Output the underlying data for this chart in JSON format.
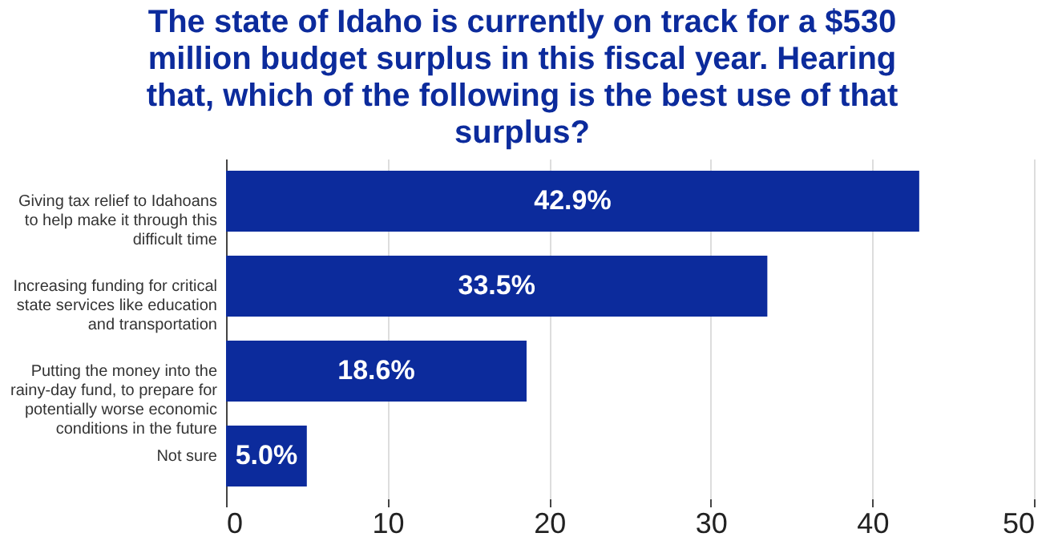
{
  "chart_data": {
    "type": "bar",
    "orientation": "horizontal",
    "title": "The state of Idaho is currently on track for a $530 million budget surplus in this fiscal year. Hearing that, which of the following is the best use of that surplus?",
    "categories": [
      "Giving tax relief to Idahoans to help make it through this difficult time",
      "Increasing funding for critical state services like education and transportation",
      "Putting the money into the rainy-day fund, to prepare for potentially worse economic conditions in the future",
      "Not sure"
    ],
    "values": [
      42.9,
      33.5,
      18.6,
      5.0
    ],
    "value_labels": [
      "42.9%",
      "33.5%",
      "18.6%",
      "5.0%"
    ],
    "color": "#0c2b9c",
    "xlim": [
      0,
      50
    ],
    "xticks": [
      0,
      10,
      20,
      30,
      40,
      50
    ],
    "grid": "x"
  }
}
